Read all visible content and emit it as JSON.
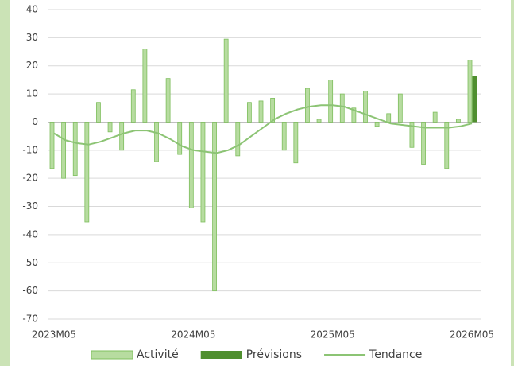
{
  "chart_data": {
    "type": "bar",
    "categories": [
      "2023M05",
      null,
      null,
      null,
      null,
      null,
      null,
      null,
      null,
      null,
      null,
      null,
      "2024M05",
      null,
      null,
      null,
      null,
      null,
      null,
      null,
      null,
      null,
      null,
      null,
      "2025M05",
      null,
      null,
      null,
      null,
      null,
      null,
      null,
      null,
      null,
      null,
      null,
      "2026M05"
    ],
    "series": [
      {
        "name": "Activité",
        "type": "bar",
        "color": "#b7dca0",
        "values": [
          -16.5,
          -20,
          -19,
          -35.5,
          7,
          -3.5,
          -10,
          11.5,
          26,
          -14,
          15.5,
          -11.5,
          -30.5,
          -35.5,
          -60,
          29.5,
          -12,
          7,
          7.5,
          8.5,
          -10,
          -14.5,
          12,
          1,
          15,
          10,
          5,
          11,
          -1.5,
          3,
          10,
          -9,
          -15,
          3.5,
          -16.5,
          1,
          22
        ]
      },
      {
        "name": "Prévisions",
        "type": "bar",
        "color": "#4f8f2f",
        "values": [
          null,
          null,
          null,
          null,
          null,
          null,
          null,
          null,
          null,
          null,
          null,
          null,
          null,
          null,
          null,
          null,
          null,
          null,
          null,
          null,
          null,
          null,
          null,
          null,
          null,
          null,
          null,
          null,
          null,
          null,
          null,
          null,
          null,
          null,
          null,
          null,
          16.5
        ]
      },
      {
        "name": "Tendance",
        "type": "line",
        "color": "#8cc474",
        "values": [
          -4,
          -6.5,
          -7.5,
          -8,
          -7,
          -5.5,
          -4,
          -3,
          -3,
          -4,
          -6,
          -8.5,
          -10,
          -10.5,
          -11,
          -10,
          -8,
          -5,
          -2,
          1,
          3,
          4.5,
          5.5,
          6,
          6,
          5.5,
          4,
          2.5,
          1,
          -0.5,
          -1,
          -1.5,
          -2,
          -2,
          -2,
          -1.5,
          -0.5
        ]
      }
    ],
    "ylim": [
      -70,
      40
    ],
    "yticks": [
      -70,
      -60,
      -50,
      -40,
      -30,
      -20,
      -10,
      0,
      10,
      20,
      30,
      40
    ],
    "grid": true,
    "legend": "bottom"
  }
}
